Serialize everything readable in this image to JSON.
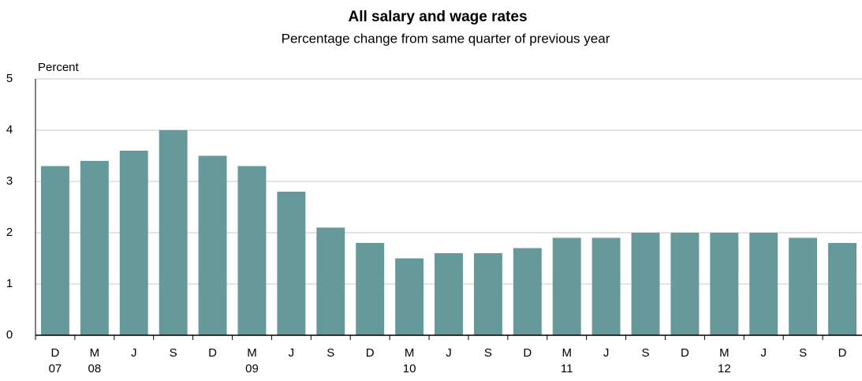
{
  "chart_data": {
    "type": "bar",
    "title": "All salary and wage rates",
    "subtitle": "Percentage change from same quarter of previous year",
    "y_label": "Percent",
    "categories": [
      "D",
      "M",
      "J",
      "S",
      "D",
      "M",
      "J",
      "S",
      "D",
      "M",
      "J",
      "S",
      "D",
      "M",
      "J",
      "S",
      "D",
      "M",
      "J",
      "S",
      "D"
    ],
    "years": [
      "07",
      "08",
      null,
      null,
      null,
      "09",
      null,
      null,
      null,
      "10",
      null,
      null,
      null,
      "11",
      null,
      null,
      null,
      "12",
      null,
      null,
      null
    ],
    "values": [
      3.3,
      3.4,
      3.6,
      4.0,
      3.5,
      3.3,
      2.8,
      2.1,
      1.8,
      1.5,
      1.6,
      1.6,
      1.7,
      1.9,
      1.9,
      2.0,
      2.0,
      2.0,
      2.0,
      1.9,
      1.8
    ],
    "color": "#669999",
    "ylim": [
      0,
      5
    ],
    "yticks": [
      0,
      1,
      2,
      3,
      4,
      5
    ],
    "grid": true
  }
}
